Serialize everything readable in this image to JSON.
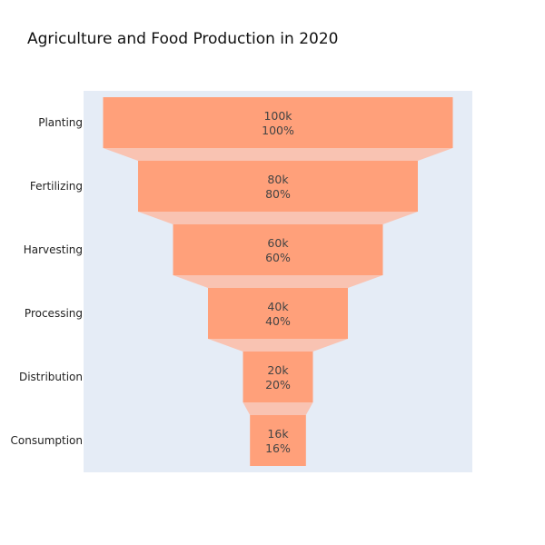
{
  "chart_data": {
    "type": "funnel",
    "title": "Agriculture and Food Production in 2020",
    "categories": [
      "Planting",
      "Fertilizing",
      "Harvesting",
      "Processing",
      "Distribution",
      "Consumption"
    ],
    "values": [
      100000,
      80000,
      60000,
      40000,
      20000,
      16000
    ],
    "value_labels": [
      "100k",
      "80k",
      "60k",
      "40k",
      "20k",
      "16k"
    ],
    "percent_labels": [
      "100%",
      "80%",
      "60%",
      "40%",
      "20%",
      "16%"
    ],
    "colors": {
      "bar": "#ffa07a",
      "connector": "#f9c3b2",
      "plot_background": "#e5ecf6"
    }
  }
}
